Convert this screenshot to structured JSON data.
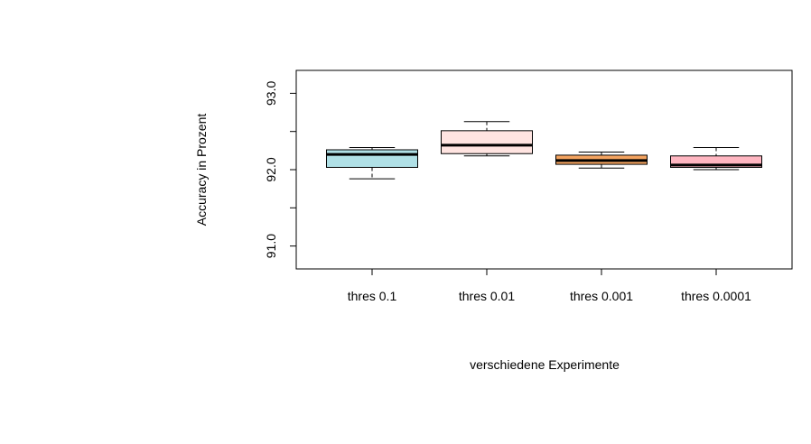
{
  "chart_data": {
    "type": "box",
    "xlabel": "verschiedene Experimente",
    "ylabel": "Accuracy in Prozent",
    "ylim": [
      90.7,
      93.3
    ],
    "yticks": [
      91.0,
      92.0,
      93.0
    ],
    "ytick_labels": [
      "91.0",
      "",
      "92.0",
      "",
      "93.0"
    ],
    "ytick_all": [
      91.0,
      91.5,
      92.0,
      92.5,
      93.0
    ],
    "categories": [
      "thres 0.1",
      "thres 0.01",
      "thres 0.001",
      "thres 0.0001"
    ],
    "boxes": [
      {
        "category": "thres 0.1",
        "whisker_low": 91.88,
        "q1": 92.03,
        "median": 92.2,
        "q3": 92.26,
        "whisker_high": 92.29,
        "color": "#b0e0e6"
      },
      {
        "category": "thres 0.01",
        "whisker_low": 92.18,
        "q1": 92.21,
        "median": 92.32,
        "q3": 92.51,
        "whisker_high": 92.63,
        "color": "#ffe4e1"
      },
      {
        "category": "thres 0.001",
        "whisker_low": 92.02,
        "q1": 92.07,
        "median": 92.12,
        "q3": 92.19,
        "whisker_high": 92.23,
        "color": "#f4a460"
      },
      {
        "category": "thres 0.0001",
        "whisker_low": 92.0,
        "q1": 92.03,
        "median": 92.06,
        "q3": 92.18,
        "whisker_high": 92.29,
        "color": "#ffb6c1"
      }
    ],
    "grid": false,
    "legend": "none"
  }
}
